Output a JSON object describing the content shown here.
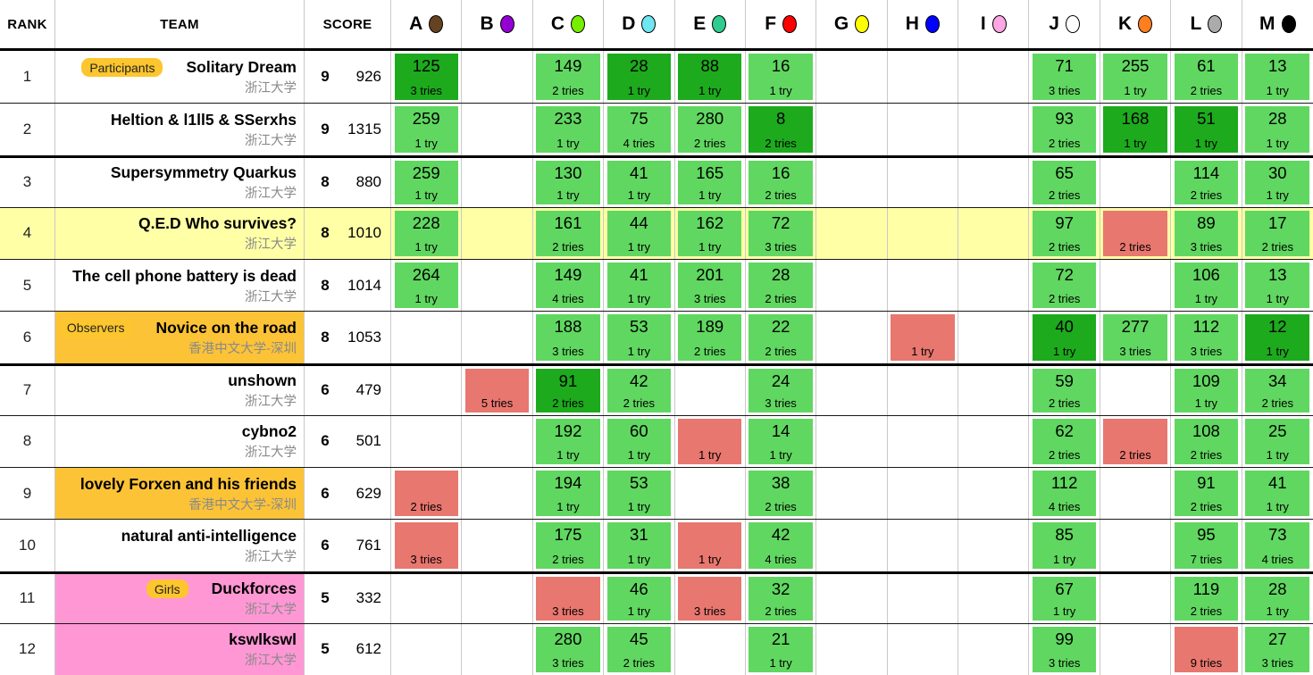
{
  "header": {
    "rank": "RANK",
    "team": "TEAM",
    "score": "SCORE",
    "problems": [
      {
        "label": "A",
        "color": "#654321"
      },
      {
        "label": "B",
        "color": "#9400D3"
      },
      {
        "label": "C",
        "color": "#76EE00"
      },
      {
        "label": "D",
        "color": "#6FE7F2"
      },
      {
        "label": "E",
        "color": "#2FCC8F"
      },
      {
        "label": "F",
        "color": "#FF0000"
      },
      {
        "label": "G",
        "color": "#FFFF00"
      },
      {
        "label": "H",
        "color": "#0000FF"
      },
      {
        "label": "I",
        "color": "#FFA6E3"
      },
      {
        "label": "J",
        "color": "#FFFFFF"
      },
      {
        "label": "K",
        "color": "#FF7F1E"
      },
      {
        "label": "L",
        "color": "#ABABAB"
      },
      {
        "label": "M",
        "color": "#000000"
      }
    ]
  },
  "colors": {
    "solved": "#60d760",
    "first": "#1daa1d",
    "failed": "#e8776f",
    "highlight": "#ffffa6",
    "observers": "#fcc336",
    "girls": "#ff97d5",
    "badge": "#fdc62e"
  },
  "rows": [
    {
      "rank": "1",
      "badge": "Participants",
      "name": "Solitary Dream",
      "affiliation": "浙江大学",
      "solved": "9",
      "penalty": "926",
      "category": null,
      "highlight": false,
      "cells": [
        {
          "time": "125",
          "tries": "3 tries",
          "state": "first"
        },
        null,
        {
          "time": "149",
          "tries": "2 tries",
          "state": "solved"
        },
        {
          "time": "28",
          "tries": "1 try",
          "state": "first"
        },
        {
          "time": "88",
          "tries": "1 try",
          "state": "first"
        },
        {
          "time": "16",
          "tries": "1 try",
          "state": "solved"
        },
        null,
        null,
        null,
        {
          "time": "71",
          "tries": "3 tries",
          "state": "solved"
        },
        {
          "time": "255",
          "tries": "1 try",
          "state": "solved"
        },
        {
          "time": "61",
          "tries": "2 tries",
          "state": "solved"
        },
        {
          "time": "13",
          "tries": "1 try",
          "state": "solved"
        }
      ]
    },
    {
      "rank": "2",
      "badge": null,
      "name": "Heltion & l1ll5 & SSerxhs",
      "affiliation": "浙江大学",
      "solved": "9",
      "penalty": "1315",
      "category": null,
      "highlight": false,
      "cells": [
        {
          "time": "259",
          "tries": "1 try",
          "state": "solved"
        },
        null,
        {
          "time": "233",
          "tries": "1 try",
          "state": "solved"
        },
        {
          "time": "75",
          "tries": "4 tries",
          "state": "solved"
        },
        {
          "time": "280",
          "tries": "2 tries",
          "state": "solved"
        },
        {
          "time": "8",
          "tries": "2 tries",
          "state": "first"
        },
        null,
        null,
        null,
        {
          "time": "93",
          "tries": "2 tries",
          "state": "solved"
        },
        {
          "time": "168",
          "tries": "1 try",
          "state": "first"
        },
        {
          "time": "51",
          "tries": "1 try",
          "state": "first"
        },
        {
          "time": "28",
          "tries": "1 try",
          "state": "solved"
        }
      ]
    },
    {
      "rank": "3",
      "badge": null,
      "name": "Supersymmetry Quarkus",
      "affiliation": "浙江大学",
      "solved": "8",
      "penalty": "880",
      "category": null,
      "highlight": false,
      "cells": [
        {
          "time": "259",
          "tries": "1 try",
          "state": "solved"
        },
        null,
        {
          "time": "130",
          "tries": "1 try",
          "state": "solved"
        },
        {
          "time": "41",
          "tries": "1 try",
          "state": "solved"
        },
        {
          "time": "165",
          "tries": "1 try",
          "state": "solved"
        },
        {
          "time": "16",
          "tries": "2 tries",
          "state": "solved"
        },
        null,
        null,
        null,
        {
          "time": "65",
          "tries": "2 tries",
          "state": "solved"
        },
        null,
        {
          "time": "114",
          "tries": "2 tries",
          "state": "solved"
        },
        {
          "time": "30",
          "tries": "1 try",
          "state": "solved"
        }
      ]
    },
    {
      "rank": "4",
      "badge": null,
      "name": "Q.E.D Who survives?",
      "affiliation": "浙江大学",
      "solved": "8",
      "penalty": "1010",
      "category": null,
      "highlight": true,
      "cells": [
        {
          "time": "228",
          "tries": "1 try",
          "state": "solved"
        },
        null,
        {
          "time": "161",
          "tries": "2 tries",
          "state": "solved"
        },
        {
          "time": "44",
          "tries": "1 try",
          "state": "solved"
        },
        {
          "time": "162",
          "tries": "1 try",
          "state": "solved"
        },
        {
          "time": "72",
          "tries": "3 tries",
          "state": "solved"
        },
        null,
        null,
        null,
        {
          "time": "97",
          "tries": "2 tries",
          "state": "solved"
        },
        {
          "time": "",
          "tries": "2 tries",
          "state": "failed"
        },
        {
          "time": "89",
          "tries": "3 tries",
          "state": "solved"
        },
        {
          "time": "17",
          "tries": "2 tries",
          "state": "solved"
        }
      ]
    },
    {
      "rank": "5",
      "badge": null,
      "name": "The cell phone battery is dead",
      "affiliation": "浙江大学",
      "solved": "8",
      "penalty": "1014",
      "category": null,
      "highlight": false,
      "cells": [
        {
          "time": "264",
          "tries": "1 try",
          "state": "solved"
        },
        null,
        {
          "time": "149",
          "tries": "4 tries",
          "state": "solved"
        },
        {
          "time": "41",
          "tries": "1 try",
          "state": "solved"
        },
        {
          "time": "201",
          "tries": "3 tries",
          "state": "solved"
        },
        {
          "time": "28",
          "tries": "2 tries",
          "state": "solved"
        },
        null,
        null,
        null,
        {
          "time": "72",
          "tries": "2 tries",
          "state": "solved"
        },
        null,
        {
          "time": "106",
          "tries": "1 try",
          "state": "solved"
        },
        {
          "time": "13",
          "tries": "1 try",
          "state": "solved"
        }
      ]
    },
    {
      "rank": "6",
      "badge": "Observers",
      "name": "Novice on the road",
      "affiliation": "香港中文大学-深圳",
      "solved": "8",
      "penalty": "1053",
      "category": "observers",
      "highlight": false,
      "cells": [
        null,
        null,
        {
          "time": "188",
          "tries": "3 tries",
          "state": "solved"
        },
        {
          "time": "53",
          "tries": "1 try",
          "state": "solved"
        },
        {
          "time": "189",
          "tries": "2 tries",
          "state": "solved"
        },
        {
          "time": "22",
          "tries": "2 tries",
          "state": "solved"
        },
        null,
        {
          "time": "",
          "tries": "1 try",
          "state": "failed"
        },
        null,
        {
          "time": "40",
          "tries": "1 try",
          "state": "first"
        },
        {
          "time": "277",
          "tries": "3 tries",
          "state": "solved"
        },
        {
          "time": "112",
          "tries": "3 tries",
          "state": "solved"
        },
        {
          "time": "12",
          "tries": "1 try",
          "state": "first"
        }
      ]
    },
    {
      "rank": "7",
      "badge": null,
      "name": "unshown",
      "affiliation": "浙江大学",
      "solved": "6",
      "penalty": "479",
      "category": null,
      "highlight": false,
      "cells": [
        null,
        {
          "time": "",
          "tries": "5 tries",
          "state": "failed"
        },
        {
          "time": "91",
          "tries": "2 tries",
          "state": "first"
        },
        {
          "time": "42",
          "tries": "2 tries",
          "state": "solved"
        },
        null,
        {
          "time": "24",
          "tries": "3 tries",
          "state": "solved"
        },
        null,
        null,
        null,
        {
          "time": "59",
          "tries": "2 tries",
          "state": "solved"
        },
        null,
        {
          "time": "109",
          "tries": "1 try",
          "state": "solved"
        },
        {
          "time": "34",
          "tries": "2 tries",
          "state": "solved"
        }
      ]
    },
    {
      "rank": "8",
      "badge": null,
      "name": "cybno2",
      "affiliation": "浙江大学",
      "solved": "6",
      "penalty": "501",
      "category": null,
      "highlight": false,
      "cells": [
        null,
        null,
        {
          "time": "192",
          "tries": "1 try",
          "state": "solved"
        },
        {
          "time": "60",
          "tries": "1 try",
          "state": "solved"
        },
        {
          "time": "",
          "tries": "1 try",
          "state": "failed"
        },
        {
          "time": "14",
          "tries": "1 try",
          "state": "solved"
        },
        null,
        null,
        null,
        {
          "time": "62",
          "tries": "2 tries",
          "state": "solved"
        },
        {
          "time": "",
          "tries": "2 tries",
          "state": "failed"
        },
        {
          "time": "108",
          "tries": "2 tries",
          "state": "solved"
        },
        {
          "time": "25",
          "tries": "1 try",
          "state": "solved"
        }
      ]
    },
    {
      "rank": "9",
      "badge": null,
      "name": "lovely Forxen and his friends",
      "affiliation": "香港中文大学-深圳",
      "solved": "6",
      "penalty": "629",
      "category": "observers",
      "highlight": false,
      "cells": [
        {
          "time": "",
          "tries": "2 tries",
          "state": "failed"
        },
        null,
        {
          "time": "194",
          "tries": "1 try",
          "state": "solved"
        },
        {
          "time": "53",
          "tries": "1 try",
          "state": "solved"
        },
        null,
        {
          "time": "38",
          "tries": "2 tries",
          "state": "solved"
        },
        null,
        null,
        null,
        {
          "time": "112",
          "tries": "4 tries",
          "state": "solved"
        },
        null,
        {
          "time": "91",
          "tries": "2 tries",
          "state": "solved"
        },
        {
          "time": "41",
          "tries": "1 try",
          "state": "solved"
        }
      ]
    },
    {
      "rank": "10",
      "badge": null,
      "name": "natural anti-intelligence",
      "affiliation": "浙江大学",
      "solved": "6",
      "penalty": "761",
      "category": null,
      "highlight": false,
      "cells": [
        {
          "time": "",
          "tries": "3 tries",
          "state": "failed"
        },
        null,
        {
          "time": "175",
          "tries": "2 tries",
          "state": "solved"
        },
        {
          "time": "31",
          "tries": "1 try",
          "state": "solved"
        },
        {
          "time": "",
          "tries": "1 try",
          "state": "failed"
        },
        {
          "time": "42",
          "tries": "4 tries",
          "state": "solved"
        },
        null,
        null,
        null,
        {
          "time": "85",
          "tries": "1 try",
          "state": "solved"
        },
        null,
        {
          "time": "95",
          "tries": "7 tries",
          "state": "solved"
        },
        {
          "time": "73",
          "tries": "4 tries",
          "state": "solved"
        }
      ]
    },
    {
      "rank": "11",
      "badge": "Girls",
      "name": "Duckforces",
      "affiliation": "浙江大学",
      "solved": "5",
      "penalty": "332",
      "category": "girls",
      "highlight": false,
      "cells": [
        null,
        null,
        {
          "time": "",
          "tries": "3 tries",
          "state": "failed"
        },
        {
          "time": "46",
          "tries": "1 try",
          "state": "solved"
        },
        {
          "time": "",
          "tries": "3 tries",
          "state": "failed"
        },
        {
          "time": "32",
          "tries": "2 tries",
          "state": "solved"
        },
        null,
        null,
        null,
        {
          "time": "67",
          "tries": "1 try",
          "state": "solved"
        },
        null,
        {
          "time": "119",
          "tries": "2 tries",
          "state": "solved"
        },
        {
          "time": "28",
          "tries": "1 try",
          "state": "solved"
        }
      ]
    },
    {
      "rank": "12",
      "badge": null,
      "name": "kswlkswl",
      "affiliation": "浙江大学",
      "solved": "5",
      "penalty": "612",
      "category": "girls",
      "highlight": false,
      "cells": [
        null,
        null,
        {
          "time": "280",
          "tries": "3 tries",
          "state": "solved"
        },
        {
          "time": "45",
          "tries": "2 tries",
          "state": "solved"
        },
        null,
        {
          "time": "21",
          "tries": "1 try",
          "state": "solved"
        },
        null,
        null,
        null,
        {
          "time": "99",
          "tries": "3 tries",
          "state": "solved"
        },
        null,
        {
          "time": "",
          "tries": "9 tries",
          "state": "failed"
        },
        {
          "time": "27",
          "tries": "3 tries",
          "state": "solved"
        }
      ]
    }
  ]
}
